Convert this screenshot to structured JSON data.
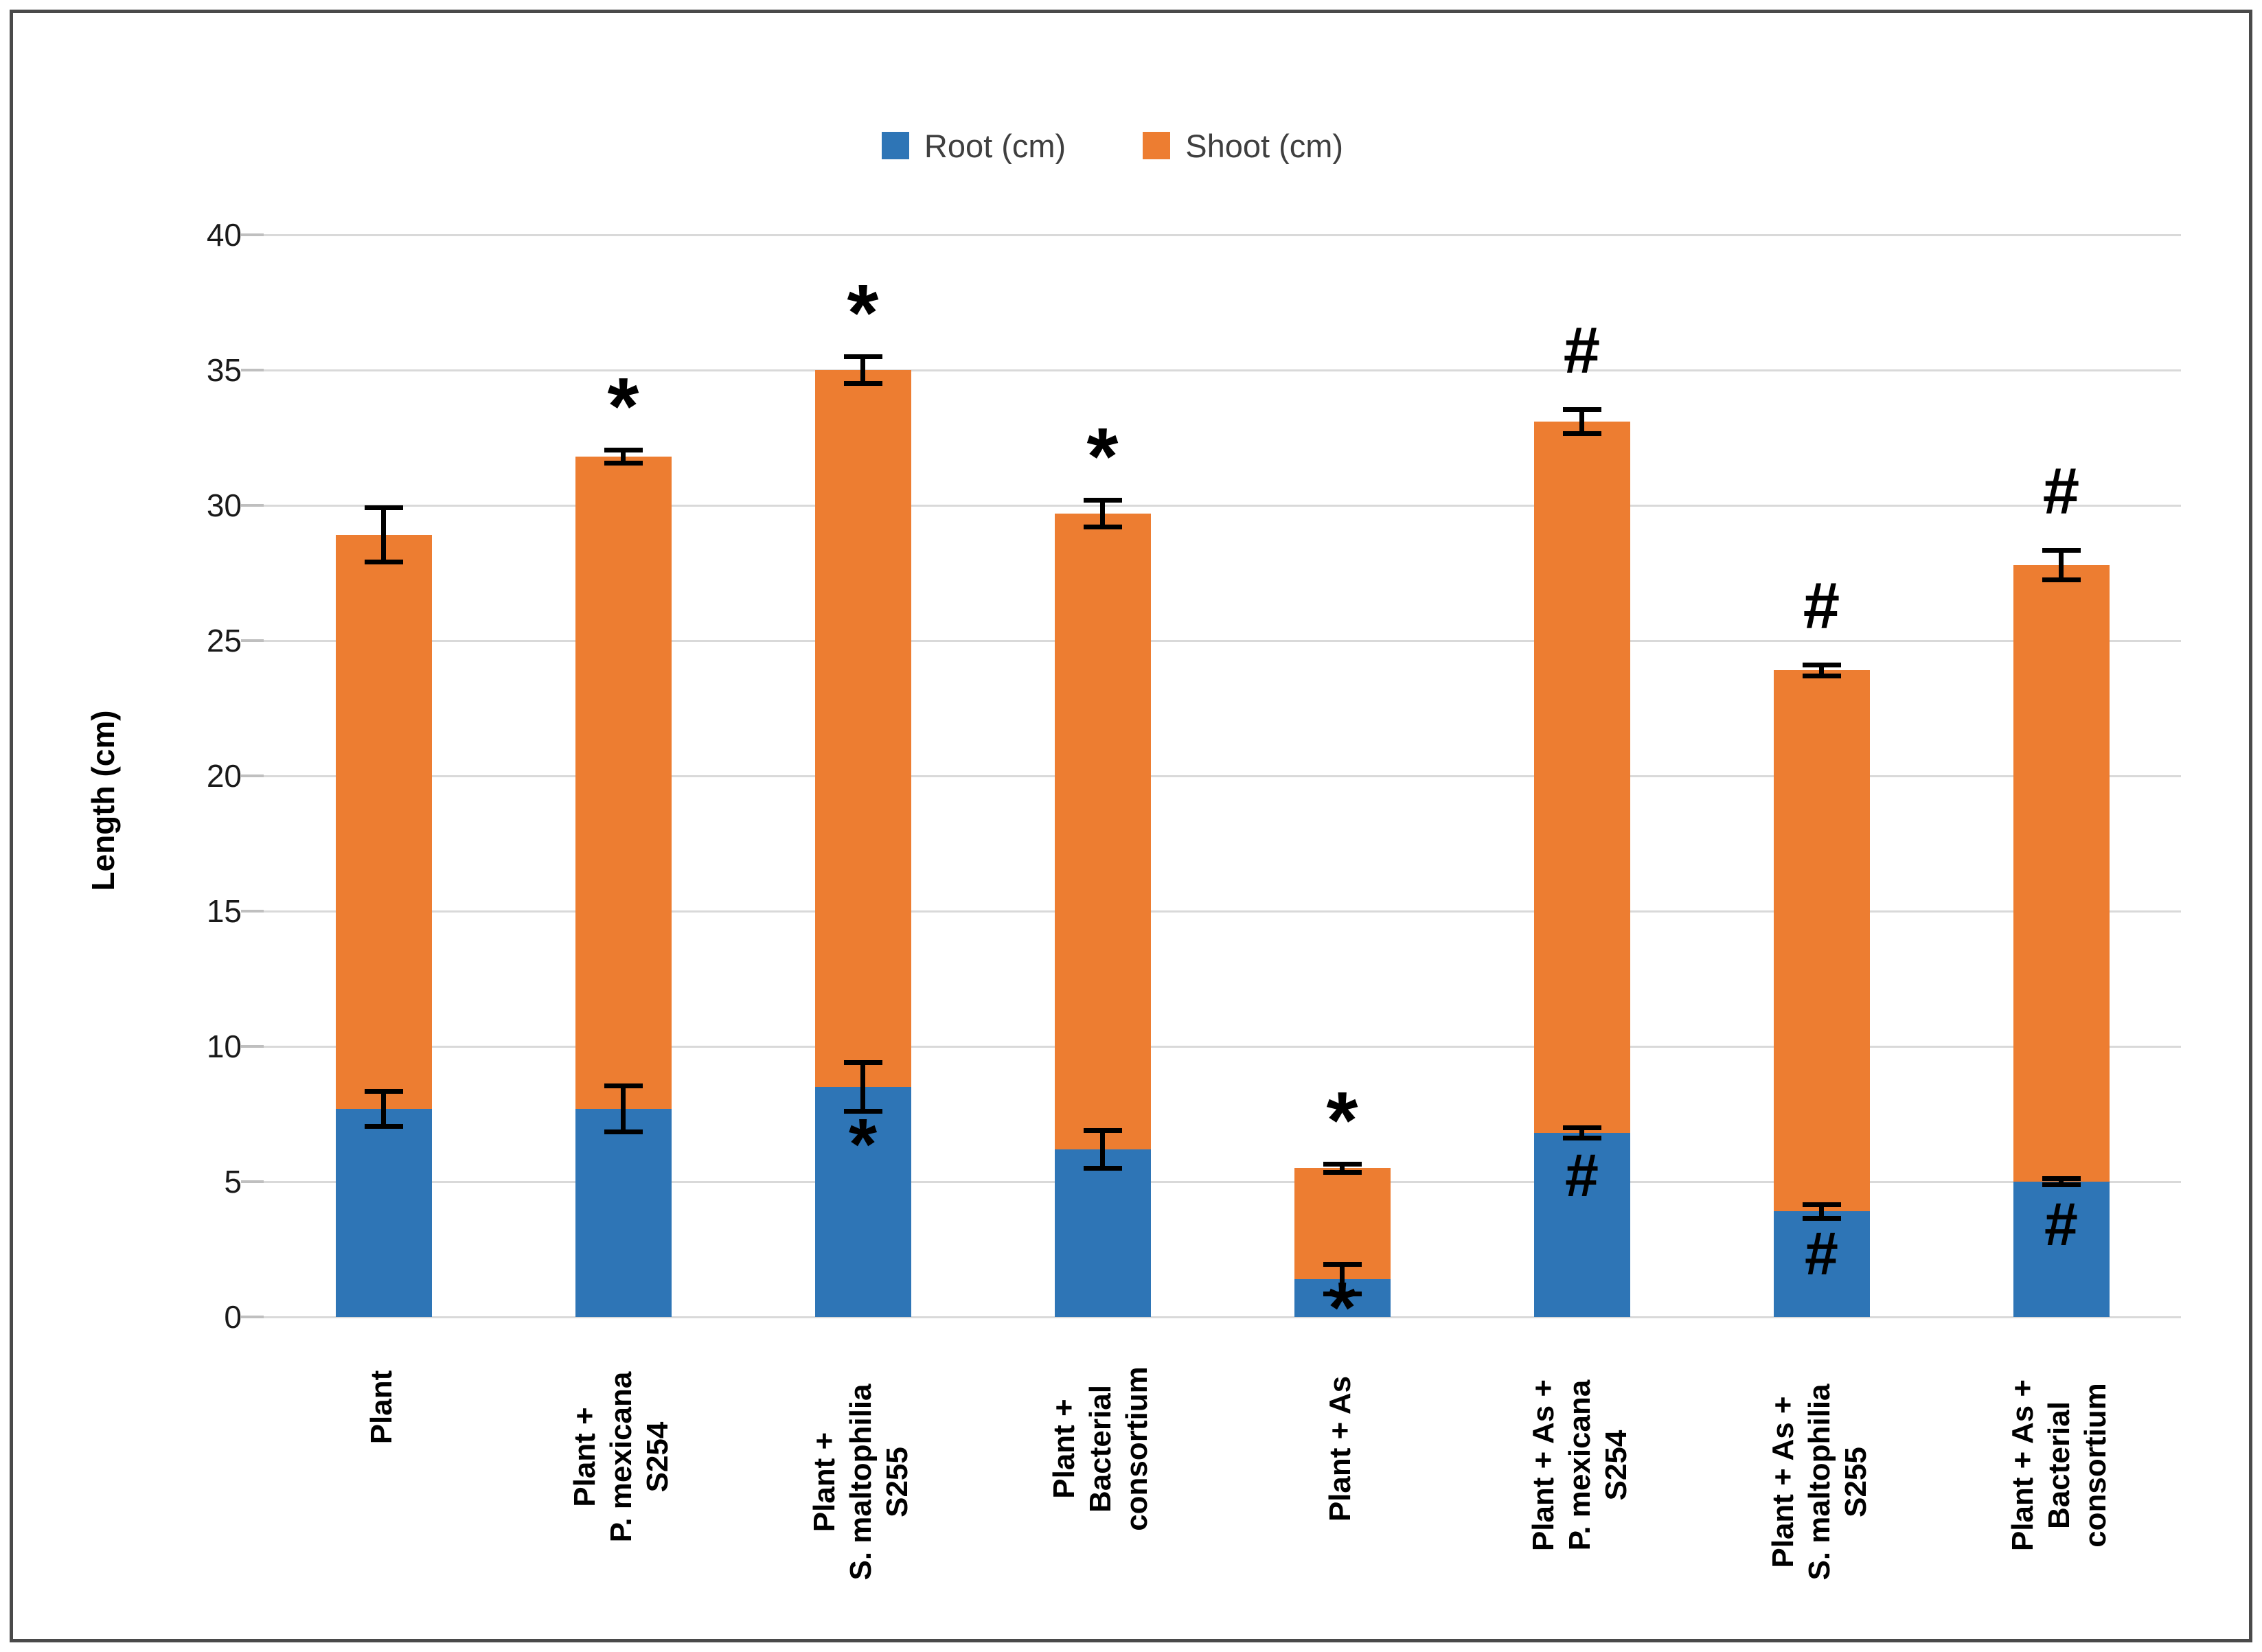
{
  "legend": {
    "items": [
      {
        "label": "Root (cm)",
        "color": "#2E75B6",
        "swatch": "square"
      },
      {
        "label": "Shoot (cm)",
        "color": "#ED7D31",
        "swatch": "square"
      }
    ]
  },
  "chart_data": {
    "type": "bar",
    "stacked": true,
    "title": "",
    "xlabel": "",
    "ylabel": "Length (cm)",
    "ylim": [
      0,
      40
    ],
    "yticks": [
      0,
      5,
      10,
      15,
      20,
      25,
      30,
      35,
      40
    ],
    "grid": "horizontal",
    "legend_position": "top",
    "categories": [
      [
        "Plant"
      ],
      [
        "Plant +",
        "P. mexicana",
        "S254"
      ],
      [
        "Plant +",
        "S. maltophilia",
        "S255"
      ],
      [
        "Plant +",
        "Bacterial",
        "consortium"
      ],
      [
        "Plant + As"
      ],
      [
        "Plant + As +",
        "P. mexicana",
        "S254"
      ],
      [
        "Plant + As +",
        "S. maltophilia",
        "S255"
      ],
      [
        "Plant + As +",
        "Bacterial",
        "consortium"
      ]
    ],
    "series": [
      {
        "name": "Root (cm)",
        "color": "#2E75B6",
        "values": [
          7.7,
          7.7,
          8.5,
          6.2,
          1.4,
          6.8,
          3.9,
          5.0
        ],
        "error": [
          0.65,
          0.85,
          0.9,
          0.7,
          0.55,
          0.2,
          0.25,
          0.12
        ],
        "sig_markers": [
          "",
          "",
          "*",
          "",
          "*",
          "#",
          "#",
          "#"
        ]
      },
      {
        "name": "Shoot (cm)",
        "color": "#ED7D31",
        "values": [
          21.2,
          24.1,
          26.5,
          23.5,
          4.1,
          26.3,
          20.0,
          22.8
        ]
      }
    ],
    "totals": [
      28.9,
      31.8,
      35.0,
      29.7,
      5.5,
      33.1,
      23.9,
      27.8
    ],
    "total_error": [
      1.0,
      0.25,
      0.5,
      0.5,
      0.15,
      0.45,
      0.2,
      0.55
    ],
    "total_sig_markers": [
      "",
      "*",
      "*",
      "*",
      "*",
      "#",
      "#",
      "#"
    ],
    "error_bar_color": "#000000",
    "gridline_color": "#d9d9d9"
  }
}
